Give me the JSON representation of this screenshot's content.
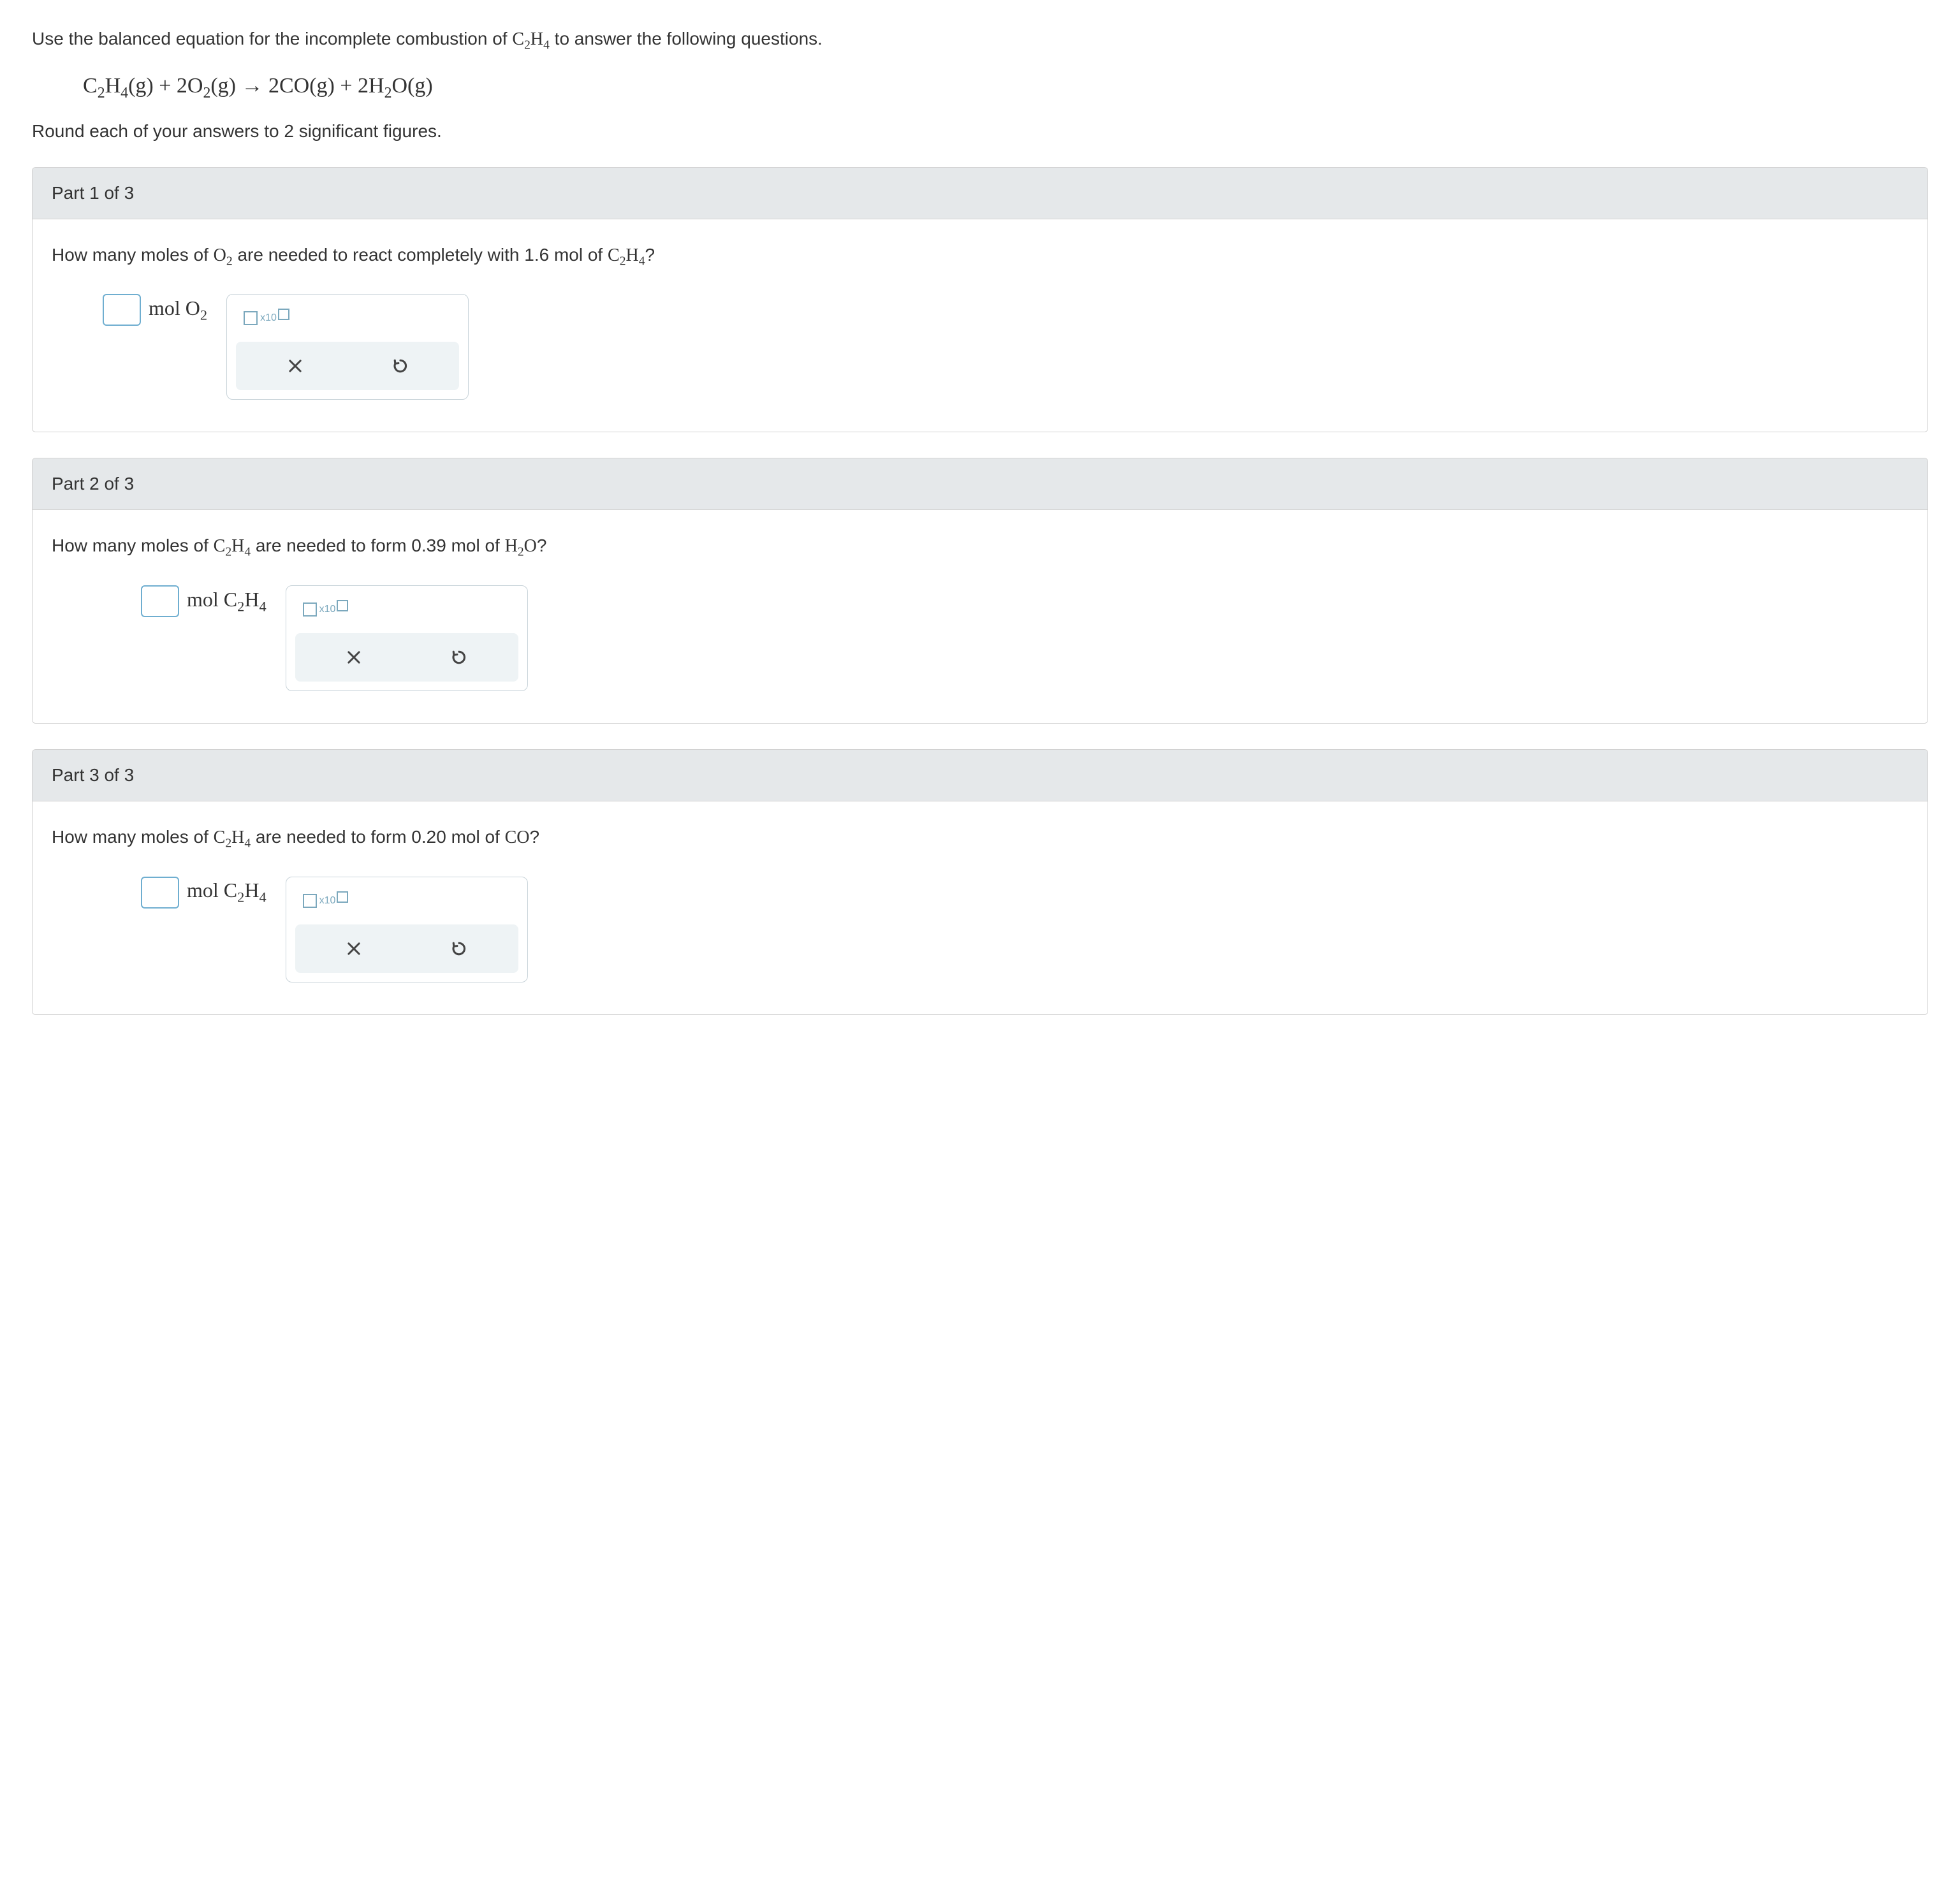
{
  "intro": {
    "prefix": "Use the balanced equation for the incomplete combustion of ",
    "molecule_html": "C<sub>2</sub>H<sub>4</sub>",
    "suffix": " to answer the following questions."
  },
  "equation_html": "C<sub>2</sub>H<sub>4</sub>(g) + 2O<sub>2</sub>(g)  →  2CO(g) + 2H<sub>2</sub>O(g)",
  "round_text": "Round each of your answers to 2 significant figures.",
  "parts": [
    {
      "header": "Part 1 of 3",
      "question_html": "How many moles of O<sub>2</sub> are needed to react completely with 1.6 mol of C<sub>2</sub>H<sub>4</sub>?",
      "unit_html": "mol O<sub>2</sub>",
      "value": "",
      "sci_label": "x10",
      "indent": 80
    },
    {
      "header": "Part 2 of 3",
      "question_html": "How many moles of C<sub>2</sub>H<sub>4</sub> are needed to form 0.39 mol of H<sub>2</sub>O?",
      "unit_html": "mol C<sub>2</sub>H<sub>4</sub>",
      "value": "",
      "sci_label": "x10",
      "indent": 140
    },
    {
      "header": "Part 3 of 3",
      "question_html": "How many moles of C<sub>2</sub>H<sub>4</sub> are needed to form 0.20 mol of CO?",
      "unit_html": "mol C<sub>2</sub>H<sub>4</sub>",
      "value": "",
      "sci_label": "x10",
      "indent": 140
    }
  ],
  "icons": {
    "clear": "×",
    "undo_color": "#444"
  },
  "colors": {
    "header_bg": "#e5e8ea",
    "border": "#d0d0d0",
    "input_border": "#6faed0",
    "tool_border": "#c8d3d9",
    "action_bg": "#eef3f5",
    "sci_color": "#7ba8bd"
  }
}
